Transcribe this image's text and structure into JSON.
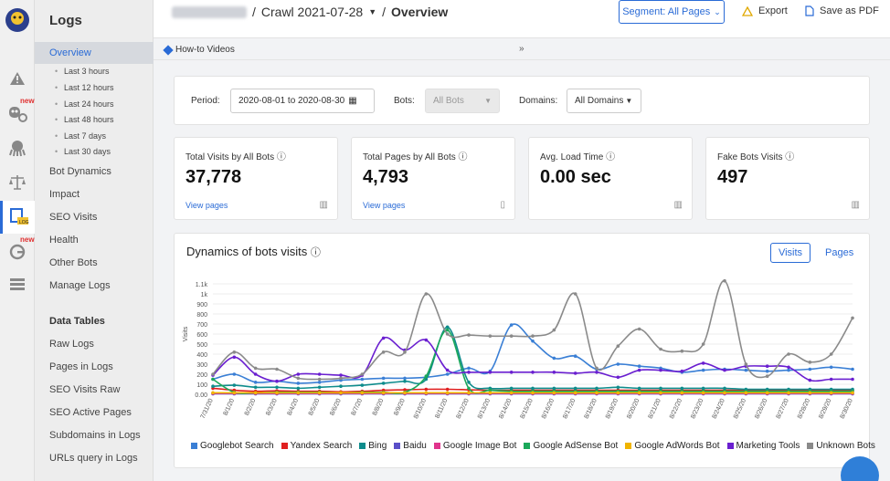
{
  "nav": {
    "title": "Logs",
    "new_badge": "new",
    "items": [
      {
        "label": "Overview",
        "active": true
      },
      {
        "label": "Bot Dynamics"
      },
      {
        "label": "Impact"
      },
      {
        "label": "SEO Visits"
      },
      {
        "label": "Health"
      },
      {
        "label": "Other Bots"
      },
      {
        "label": "Manage Logs"
      }
    ],
    "subitems": [
      "Last 3 hours",
      "Last 12 hours",
      "Last 24 hours",
      "Last 48 hours",
      "Last 7 days",
      "Last 30 days"
    ],
    "section": "Data Tables",
    "tables": [
      "Raw Logs",
      "Pages in Logs",
      "SEO Visits Raw",
      "SEO Active Pages",
      "Subdomains in Logs",
      "URLs query in Logs"
    ]
  },
  "header": {
    "sep": "/",
    "crawl": "Crawl 2021-07-28",
    "page": "Overview",
    "segment": "Segment: All Pages",
    "export": "Export",
    "pdf": "Save as PDF"
  },
  "howto": "How-to Videos",
  "filters": {
    "period_label": "Period:",
    "period_value": "2020-08-01 to 2020-08-30",
    "bots_label": "Bots:",
    "bots_value": "All Bots",
    "domains_label": "Domains:",
    "domains_value": "All Domains"
  },
  "stats": [
    {
      "title": "Total Visits by All Bots",
      "value": "37,778",
      "link": "View pages"
    },
    {
      "title": "Total Pages by All Bots",
      "value": "4,793",
      "link": "View pages"
    },
    {
      "title": "Avg. Load Time",
      "value": "0.00 sec",
      "link": ""
    },
    {
      "title": "Fake Bots Visits",
      "value": "497",
      "link": ""
    }
  ],
  "chart": {
    "title": "Dynamics of bots visits",
    "tab_visits": "Visits",
    "tab_pages": "Pages"
  },
  "chart_data": {
    "type": "line",
    "title": "Dynamics of bots visits",
    "ylabel": "Visits",
    "ylim": [
      0,
      1200
    ],
    "yticks": [
      0,
      100,
      200,
      300,
      400,
      500,
      600,
      700,
      800,
      900,
      1000,
      1100
    ],
    "ytick_labels": [
      "0.00",
      "100",
      "200",
      "300",
      "400",
      "500",
      "600",
      "700",
      "800",
      "900",
      "1k",
      "1.1k"
    ],
    "x": [
      "7/31/20",
      "8/1/20",
      "8/2/20",
      "8/3/20",
      "8/4/20",
      "8/5/20",
      "8/6/20",
      "8/7/20",
      "8/8/20",
      "8/9/20",
      "8/10/20",
      "8/11/20",
      "8/12/20",
      "8/13/20",
      "8/14/20",
      "8/15/20",
      "8/16/20",
      "8/17/20",
      "8/18/20",
      "8/19/20",
      "8/20/20",
      "8/21/20",
      "8/22/20",
      "8/23/20",
      "8/24/20",
      "8/25/20",
      "8/26/20",
      "8/27/20",
      "8/28/20",
      "8/29/20",
      "8/30/20"
    ],
    "legend_position": "bottom",
    "series": [
      {
        "name": "Googlebot Search",
        "color": "#3a7fd5",
        "values": [
          150,
          200,
          120,
          130,
          110,
          120,
          140,
          150,
          160,
          160,
          170,
          200,
          260,
          230,
          690,
          530,
          360,
          380,
          250,
          300,
          280,
          260,
          220,
          240,
          250,
          240,
          230,
          240,
          250,
          270,
          250
        ]
      },
      {
        "name": "Yandex Search",
        "color": "#e02020",
        "values": [
          60,
          40,
          30,
          35,
          30,
          30,
          25,
          30,
          40,
          45,
          50,
          50,
          45,
          40,
          40,
          40,
          40,
          40,
          40,
          40,
          40,
          40,
          40,
          40,
          40,
          40,
          40,
          40,
          40,
          40,
          40
        ]
      },
      {
        "name": "Bing",
        "color": "#0e8c8c",
        "values": [
          80,
          90,
          70,
          70,
          60,
          70,
          80,
          90,
          110,
          130,
          150,
          670,
          120,
          60,
          60,
          60,
          60,
          60,
          60,
          70,
          60,
          60,
          60,
          60,
          60,
          50,
          50,
          50,
          50,
          50,
          50
        ]
      },
      {
        "name": "Baidu",
        "color": "#5a4fc8",
        "values": [
          5,
          5,
          5,
          5,
          5,
          5,
          5,
          5,
          5,
          5,
          5,
          5,
          5,
          5,
          5,
          5,
          5,
          5,
          5,
          5,
          5,
          5,
          5,
          5,
          5,
          5,
          5,
          5,
          5,
          5,
          5
        ]
      },
      {
        "name": "Google Image Bot",
        "color": "#e0348c",
        "values": [
          10,
          10,
          10,
          10,
          10,
          10,
          10,
          10,
          10,
          10,
          10,
          10,
          10,
          10,
          10,
          10,
          10,
          10,
          10,
          10,
          10,
          10,
          10,
          10,
          10,
          10,
          10,
          10,
          10,
          10,
          10
        ]
      },
      {
        "name": "Google AdSense Bot",
        "color": "#1aa85a",
        "values": [
          150,
          20,
          15,
          20,
          20,
          20,
          15,
          20,
          20,
          20,
          180,
          640,
          60,
          40,
          30,
          30,
          30,
          30,
          30,
          30,
          30,
          30,
          30,
          30,
          30,
          30,
          30,
          30,
          30,
          30,
          30
        ]
      },
      {
        "name": "Google AdWords Bot",
        "color": "#f0b400",
        "values": [
          15,
          15,
          15,
          15,
          15,
          15,
          15,
          15,
          15,
          15,
          15,
          15,
          15,
          15,
          15,
          15,
          15,
          15,
          15,
          15,
          15,
          15,
          15,
          15,
          15,
          15,
          15,
          15,
          15,
          15,
          15
        ]
      },
      {
        "name": "Marketing Tools",
        "color": "#6a1fd0",
        "values": [
          190,
          370,
          200,
          130,
          200,
          200,
          190,
          190,
          560,
          440,
          540,
          240,
          220,
          220,
          220,
          220,
          220,
          210,
          220,
          170,
          240,
          240,
          230,
          310,
          240,
          280,
          280,
          270,
          140,
          150,
          150
        ]
      },
      {
        "name": "Unknown Bots",
        "color": "#8a8a8a",
        "values": [
          200,
          420,
          260,
          250,
          160,
          150,
          160,
          200,
          420,
          420,
          1000,
          600,
          590,
          580,
          580,
          580,
          640,
          1000,
          260,
          480,
          650,
          450,
          430,
          500,
          1130,
          300,
          180,
          400,
          320,
          400,
          760
        ]
      }
    ]
  },
  "colors": {
    "accent": "#2a6bd6"
  }
}
